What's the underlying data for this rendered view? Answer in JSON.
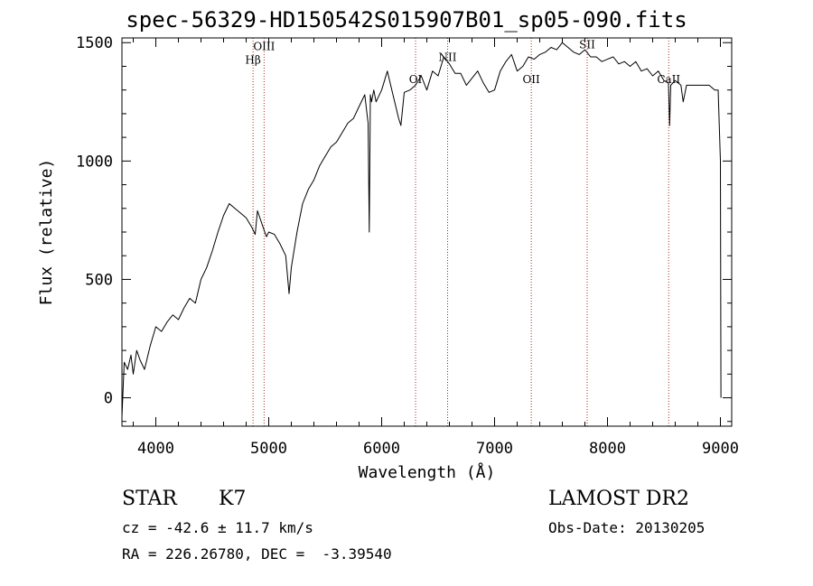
{
  "chart_data": {
    "type": "line",
    "title": "spec-56329-HD150542S015907B01_sp05-090.fits",
    "xlabel": "Wavelength (Å)",
    "ylabel": "Flux (relative)",
    "xlim": [
      3700,
      9100
    ],
    "ylim": [
      -120,
      1520
    ],
    "xticks": [
      4000,
      5000,
      6000,
      7000,
      8000,
      9000
    ],
    "yticks": [
      0,
      500,
      1000,
      1500
    ],
    "grid": false,
    "series": [
      {
        "color": "#000000",
        "x": [
          3700,
          3720,
          3750,
          3780,
          3800,
          3830,
          3860,
          3900,
          3950,
          4000,
          4050,
          4100,
          4150,
          4200,
          4250,
          4300,
          4350,
          4400,
          4450,
          4500,
          4550,
          4600,
          4650,
          4700,
          4750,
          4800,
          4850,
          4880,
          4900,
          4950,
          4980,
          5000,
          5050,
          5100,
          5150,
          5180,
          5200,
          5250,
          5300,
          5350,
          5400,
          5450,
          5500,
          5550,
          5600,
          5650,
          5700,
          5750,
          5800,
          5850,
          5880,
          5890,
          5900,
          5910,
          5930,
          5950,
          6000,
          6050,
          6100,
          6150,
          6170,
          6200,
          6250,
          6300,
          6350,
          6400,
          6450,
          6500,
          6550,
          6600,
          6650,
          6700,
          6750,
          6800,
          6850,
          6900,
          6950,
          7000,
          7050,
          7100,
          7150,
          7200,
          7250,
          7300,
          7350,
          7400,
          7450,
          7500,
          7550,
          7600,
          7650,
          7700,
          7750,
          7800,
          7850,
          7900,
          7950,
          8000,
          8050,
          8100,
          8150,
          8200,
          8250,
          8300,
          8350,
          8400,
          8450,
          8500,
          8540,
          8550,
          8560,
          8600,
          8650,
          8670,
          8700,
          8750,
          8800,
          8850,
          8900,
          8950,
          8980,
          9000,
          9005
        ],
        "y": [
          -80,
          150,
          120,
          180,
          100,
          200,
          160,
          120,
          220,
          300,
          280,
          320,
          350,
          330,
          380,
          420,
          400,
          500,
          550,
          620,
          700,
          770,
          820,
          800,
          780,
          760,
          720,
          690,
          790,
          720,
          680,
          700,
          690,
          650,
          600,
          440,
          550,
          700,
          820,
          880,
          920,
          980,
          1020,
          1060,
          1080,
          1120,
          1160,
          1180,
          1230,
          1280,
          1160,
          700,
          1280,
          1250,
          1300,
          1250,
          1300,
          1380,
          1280,
          1180,
          1150,
          1290,
          1300,
          1320,
          1360,
          1300,
          1380,
          1360,
          1440,
          1410,
          1370,
          1370,
          1320,
          1350,
          1380,
          1330,
          1290,
          1300,
          1380,
          1420,
          1450,
          1380,
          1400,
          1440,
          1430,
          1450,
          1460,
          1480,
          1470,
          1500,
          1480,
          1460,
          1450,
          1470,
          1440,
          1440,
          1420,
          1430,
          1440,
          1410,
          1420,
          1400,
          1420,
          1380,
          1390,
          1360,
          1380,
          1340,
          1330,
          1150,
          1320,
          1340,
          1320,
          1250,
          1320,
          1320,
          1320,
          1320,
          1320,
          1300,
          1300,
          1000,
          0
        ]
      }
    ],
    "annotations": [
      {
        "label": "Hβ",
        "x": 4861,
        "label_y": 1412
      },
      {
        "label": "OIII",
        "x": 4959,
        "label_y": 1468
      },
      {
        "label": "OI",
        "x": 6300,
        "label_y": 1330
      },
      {
        "label": "NII",
        "x": 6584,
        "label_y": 1422
      },
      {
        "label": "OII",
        "x": 7325,
        "label_y": 1330
      },
      {
        "label": "SII",
        "x": 7820,
        "label_y": 1476
      },
      {
        "label": "CaII",
        "x": 8542,
        "label_y": 1330
      }
    ],
    "annotation_color": "#b22222"
  },
  "info": {
    "object_class": "STAR",
    "subclass": "K7",
    "redshift_line": "cz = -42.6 ± 11.7 km/s",
    "coords_line": "RA = 226.26780, DEC =  -3.39540",
    "survey": "LAMOST DR2",
    "obs_date_line": "Obs-Date: 20130205"
  }
}
